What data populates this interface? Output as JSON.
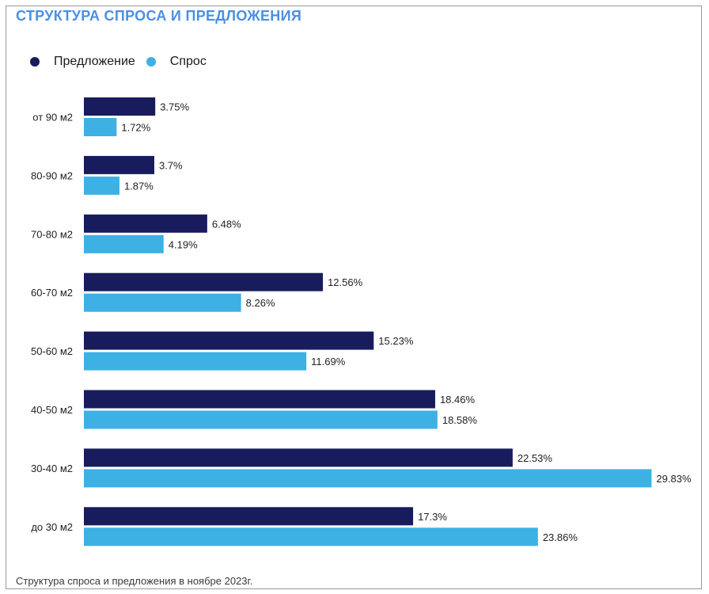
{
  "title": "СТРУКТУРА СПРОСА И ПРЕДЛОЖЕНИЯ",
  "footnote": "Структура спроса и предложения в ноябре 2023г.",
  "colors": {
    "title": "#4a90e2",
    "supply": "#181c5c",
    "demand": "#3db1e4"
  },
  "chart_data": {
    "type": "bar",
    "orientation": "horizontal",
    "categories": [
      "от 90 м2",
      "80-90 м2",
      "70-80 м2",
      "60-70 м2",
      "50-60 м2",
      "40-50 м2",
      "30-40 м2",
      "до 30 м2"
    ],
    "series": [
      {
        "name": "Предложение",
        "color": "#181c5c",
        "values": [
          3.75,
          3.7,
          6.48,
          12.56,
          15.23,
          18.46,
          22.53,
          17.3
        ],
        "labels": [
          "3.75%",
          "3.7%",
          "6.48%",
          "12.56%",
          "15.23%",
          "18.46%",
          "22.53%",
          "17.3%"
        ]
      },
      {
        "name": "Спрос",
        "color": "#3db1e4",
        "values": [
          1.72,
          1.87,
          4.19,
          8.26,
          11.69,
          18.58,
          29.83,
          23.86
        ],
        "labels": [
          "1.72%",
          "1.87%",
          "4.19%",
          "8.26%",
          "11.69%",
          "18.58%",
          "29.83%",
          "23.86%"
        ]
      }
    ],
    "legend_position": "top-left",
    "grid": false,
    "xlim": [
      0,
      30
    ]
  }
}
